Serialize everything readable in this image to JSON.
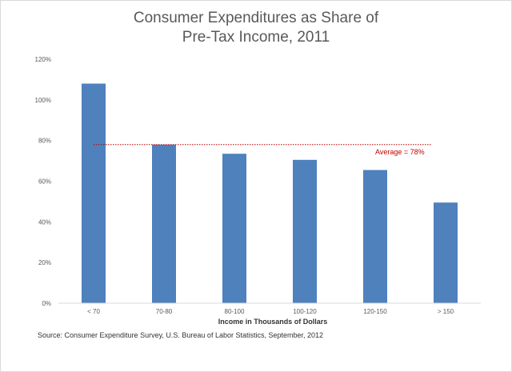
{
  "chart_data": {
    "type": "bar",
    "title_line1": "Consumer Expenditures as Share of",
    "title_line2": "Pre-Tax Income, 2011",
    "xlabel": "Income in Thousands  of Dollars",
    "ylabel": "",
    "categories": [
      "< 70",
      "70-80",
      "80-100",
      "100-120",
      "120-150",
      "> 150"
    ],
    "values": [
      108,
      78,
      73.5,
      70.5,
      65.5,
      49.5
    ],
    "unit": "%",
    "ylim": [
      0,
      120
    ],
    "yticks": [
      0,
      20,
      40,
      60,
      80,
      100,
      120
    ],
    "ytick_labels": [
      "0%",
      "20%",
      "40%",
      "60%",
      "80%",
      "100%",
      "120%"
    ],
    "grid": false,
    "bar_color": "#4f81bd",
    "reference_line": {
      "value": 78,
      "label": "Average = 78%",
      "color": "#c00000",
      "style": "dotted"
    }
  },
  "source": "Source: Consumer Expenditure Survey, U.S. Bureau of Labor Statistics, September, 2012"
}
